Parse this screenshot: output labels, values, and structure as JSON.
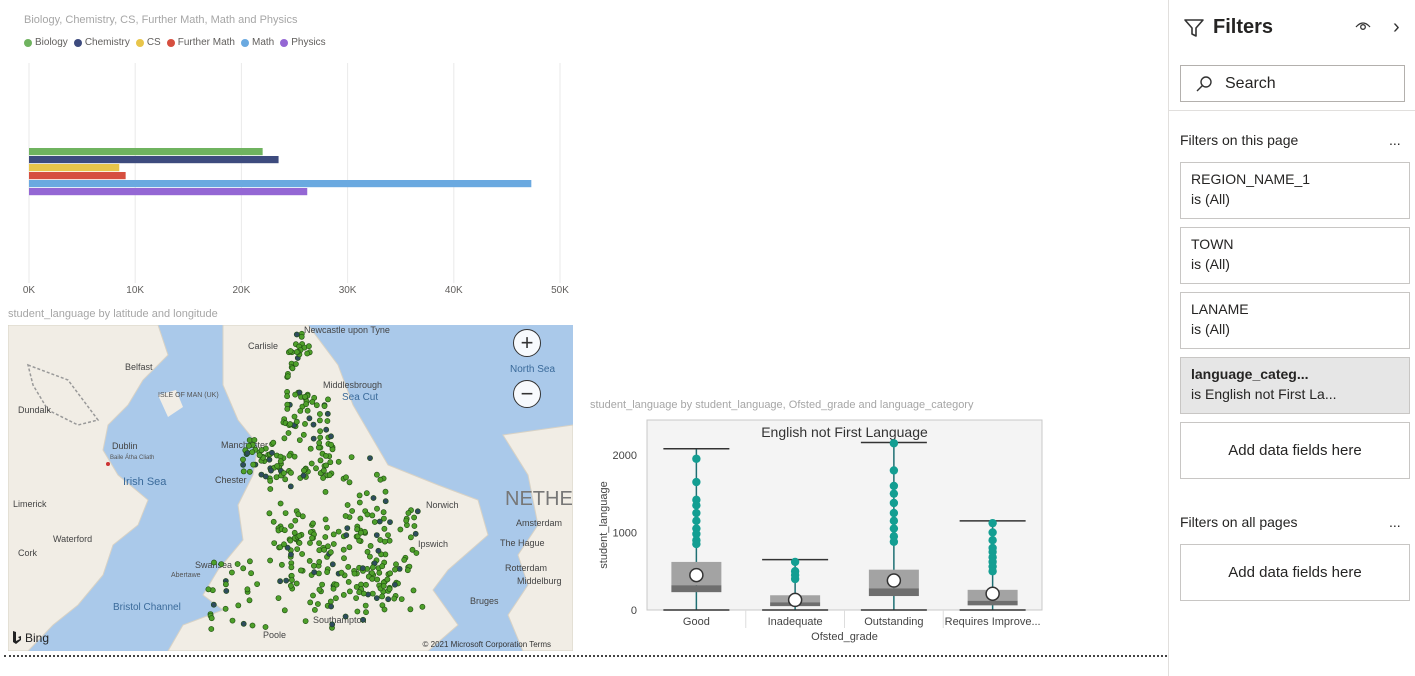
{
  "bar_visual": {
    "title": "Biology, Chemistry, CS, Further Math, Math and Physics",
    "legend": [
      {
        "label": "Biology",
        "color": "#6fb35f"
      },
      {
        "label": "Chemistry",
        "color": "#3d4b7e"
      },
      {
        "label": "CS",
        "color": "#e8c54a"
      },
      {
        "label": "Further Math",
        "color": "#d64f3f"
      },
      {
        "label": "Math",
        "color": "#6aa9e0"
      },
      {
        "label": "Physics",
        "color": "#9467d4"
      }
    ]
  },
  "map_visual": {
    "title": "student_language by latitude and longitude",
    "zoom_in": "+",
    "zoom_out": "−",
    "bing_label": "Bing",
    "copyright": "© 2021 Microsoft Corporation  Terms",
    "places": [
      {
        "name": "Newcastle upon Tyne"
      },
      {
        "name": "Carlisle"
      },
      {
        "name": "Belfast"
      },
      {
        "name": "ISLE OF MAN (UK)"
      },
      {
        "name": "Middlesbrough"
      },
      {
        "name": "Sea Cut"
      },
      {
        "name": "North Sea"
      },
      {
        "name": "Dundalk"
      },
      {
        "name": "Dublin"
      },
      {
        "name": "Baile Átha Cliath"
      },
      {
        "name": "Irish Sea"
      },
      {
        "name": "Manchester"
      },
      {
        "name": "Chester"
      },
      {
        "name": "Limerick"
      },
      {
        "name": "NETHE"
      },
      {
        "name": "Norwich"
      },
      {
        "name": "Amsterdam"
      },
      {
        "name": "Waterford"
      },
      {
        "name": "The Hague"
      },
      {
        "name": "Ipswich"
      },
      {
        "name": "Rotterdam"
      },
      {
        "name": "Middelburg"
      },
      {
        "name": "Cork"
      },
      {
        "name": "Swansea"
      },
      {
        "name": "Abertawe"
      },
      {
        "name": "Bristol Channel"
      },
      {
        "name": "Bruges"
      },
      {
        "name": "Poole"
      },
      {
        "name": "Southampton"
      }
    ]
  },
  "box_visual": {
    "title": "student_language by student_language, Ofsted_grade and language_category"
  },
  "filters": {
    "title": "Filters",
    "search_placeholder": "Search",
    "page_section": "Filters on this page",
    "all_section": "Filters on all pages",
    "more": "...",
    "chevron": "›",
    "cards": [
      {
        "name": "REGION_NAME_1",
        "value": "is (All)",
        "active": false
      },
      {
        "name": "TOWN",
        "value": "is (All)",
        "active": false
      },
      {
        "name": "LANAME",
        "value": "is (All)",
        "active": false
      },
      {
        "name": "language_categ...",
        "value": "is English not First La...",
        "active": true
      }
    ],
    "add_fields": "Add data fields here",
    "add_fields_all": "Add data fields here"
  },
  "chart_data": [
    {
      "type": "bar",
      "orientation": "horizontal",
      "series": [
        {
          "name": "Biology",
          "values": [
            22000
          ],
          "color": "#6fb35f"
        },
        {
          "name": "Chemistry",
          "values": [
            23500
          ],
          "color": "#3d4b7e"
        },
        {
          "name": "CS",
          "values": [
            8500
          ],
          "color": "#e8c54a"
        },
        {
          "name": "Further Math",
          "values": [
            9100
          ],
          "color": "#d64f3f"
        },
        {
          "name": "Math",
          "values": [
            47300
          ],
          "color": "#6aa9e0"
        },
        {
          "name": "Physics",
          "values": [
            26200
          ],
          "color": "#9467d4"
        }
      ],
      "xticks": [
        "0K",
        "10K",
        "20K",
        "30K",
        "40K",
        "50K"
      ],
      "xlim": [
        0,
        50000
      ],
      "grid": true
    },
    {
      "type": "box",
      "subtitle": "English not First Language",
      "categories": [
        "Good",
        "Inadequate",
        "Outstanding",
        "Requires Improve..."
      ],
      "xlabel": "Ofsted_grade",
      "ylabel": "student_language",
      "yticks": [
        "0",
        "1000",
        "2000"
      ],
      "ylim": [
        0,
        2450
      ],
      "boxes": [
        {
          "min": 0,
          "q1": 230,
          "median": 320,
          "q3": 620,
          "max": 2080,
          "mean": 450,
          "outliers": [
            1950,
            1650,
            1420,
            1350,
            1250,
            1150,
            1050,
            980,
            900,
            850
          ]
        },
        {
          "min": 0,
          "q1": 50,
          "median": 100,
          "q3": 190,
          "max": 650,
          "mean": 130,
          "outliers": [
            620,
            500,
            450,
            400
          ]
        },
        {
          "min": 0,
          "q1": 180,
          "median": 280,
          "q3": 520,
          "max": 2160,
          "mean": 380,
          "outliers": [
            2150,
            1800,
            1600,
            1500,
            1380,
            1250,
            1150,
            1050,
            950,
            880
          ]
        },
        {
          "min": 0,
          "q1": 60,
          "median": 120,
          "q3": 260,
          "max": 1150,
          "mean": 210,
          "outliers": [
            1120,
            1000,
            900,
            800,
            750,
            680,
            620,
            560,
            500
          ]
        }
      ]
    }
  ]
}
